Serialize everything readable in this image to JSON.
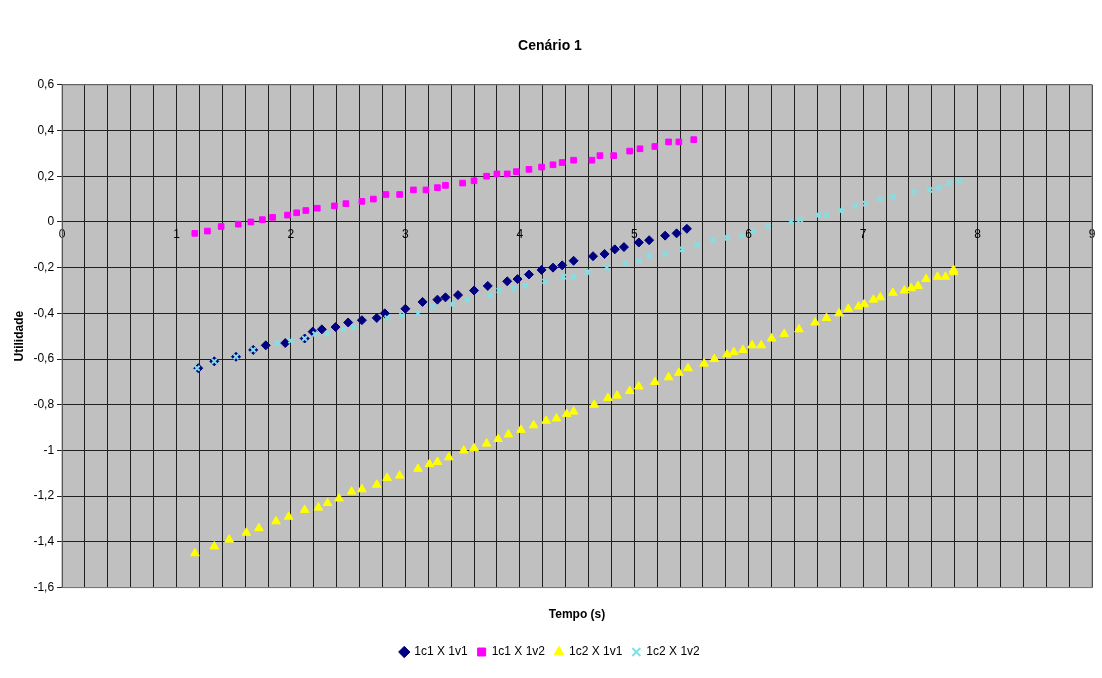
{
  "chart_data": {
    "type": "scatter",
    "title": "Cenário 1",
    "xlabel": "Tempo (s)",
    "ylabel": "Utilidade",
    "xlim": [
      0,
      9
    ],
    "ylim": [
      -1.6,
      0.6
    ],
    "xticks": [
      0,
      {
        "value": 0.2,
        "label": null
      },
      {
        "value": 0.4,
        "label": null
      },
      {
        "value": 0.6,
        "label": null
      },
      {
        "value": 0.8,
        "label": null
      },
      1,
      {
        "value": 1.2,
        "label": null
      },
      {
        "value": 1.4,
        "label": null
      },
      {
        "value": 1.6,
        "label": null
      },
      {
        "value": 1.8,
        "label": null
      },
      2,
      {
        "value": 2.2,
        "label": null
      },
      {
        "value": 2.4,
        "label": null
      },
      {
        "value": 2.6,
        "label": null
      },
      {
        "value": 2.8,
        "label": null
      },
      3,
      {
        "value": 3.2,
        "label": null
      },
      {
        "value": 3.4,
        "label": null
      },
      {
        "value": 3.6,
        "label": null
      },
      {
        "value": 3.8,
        "label": null
      },
      4,
      {
        "value": 4.2,
        "label": null
      },
      {
        "value": 4.4,
        "label": null
      },
      {
        "value": 4.6,
        "label": null
      },
      {
        "value": 4.8,
        "label": null
      },
      5,
      {
        "value": 5.2,
        "label": null
      },
      {
        "value": 5.4,
        "label": null
      },
      {
        "value": 5.6,
        "label": null
      },
      {
        "value": 5.8,
        "label": null
      },
      6,
      {
        "value": 6.2,
        "label": null
      },
      {
        "value": 6.4,
        "label": null
      },
      {
        "value": 6.6,
        "label": null
      },
      {
        "value": 6.8,
        "label": null
      },
      7,
      {
        "value": 7.2,
        "label": null
      },
      {
        "value": 7.4,
        "label": null
      },
      {
        "value": 7.6,
        "label": null
      },
      {
        "value": 7.8,
        "label": null
      },
      8,
      {
        "value": 8.2,
        "label": null
      },
      {
        "value": 8.4,
        "label": null
      },
      {
        "value": 8.6,
        "label": null
      },
      {
        "value": 8.8,
        "label": null
      },
      9
    ],
    "yticks": [
      {
        "value": -1.6,
        "label": "-1,6"
      },
      {
        "value": -1.4,
        "label": "-1,4"
      },
      {
        "value": -1.2,
        "label": "-1,2"
      },
      -1,
      {
        "value": -0.8,
        "label": "-0,8"
      },
      {
        "value": -0.6,
        "label": "-0,6"
      },
      {
        "value": -0.4,
        "label": "-0,4"
      },
      {
        "value": -0.2,
        "label": "-0,2"
      },
      0,
      {
        "value": 0.2,
        "label": "0,2"
      },
      {
        "value": 0.4,
        "label": "0,4"
      },
      {
        "value": 0.6,
        "label": "0,6"
      }
    ],
    "grid": true,
    "legend": "bottom",
    "series": [
      {
        "name": "1c1 X 1v1",
        "color": "#000080",
        "marker": "diamond",
        "x": [
          1.19,
          1.33,
          1.52,
          1.67,
          1.78,
          1.95,
          2.12,
          2.19,
          2.27,
          2.39,
          2.5,
          2.62,
          2.75,
          2.82,
          3.0,
          3.15,
          3.28,
          3.35,
          3.46,
          3.6,
          3.72,
          3.89,
          3.98,
          4.08,
          4.19,
          4.29,
          4.37,
          4.47,
          4.64,
          4.74,
          4.83,
          4.91,
          5.04,
          5.13,
          5.27,
          5.37,
          5.46
        ],
        "values": [
          -0.64,
          -0.61,
          -0.59,
          -0.56,
          -0.54,
          -0.53,
          -0.51,
          -0.48,
          -0.47,
          -0.46,
          -0.44,
          -0.43,
          -0.42,
          -0.4,
          -0.38,
          -0.35,
          -0.34,
          -0.33,
          -0.32,
          -0.3,
          -0.28,
          -0.26,
          -0.25,
          -0.23,
          -0.21,
          -0.2,
          -0.19,
          -0.17,
          -0.15,
          -0.14,
          -0.12,
          -0.11,
          -0.09,
          -0.08,
          -0.06,
          -0.05,
          -0.03
        ]
      },
      {
        "name": "1c1 X 1v2",
        "color": "#ff00ff",
        "marker": "square",
        "x": [
          1.16,
          1.27,
          1.39,
          1.54,
          1.65,
          1.75,
          1.84,
          1.97,
          2.05,
          2.13,
          2.23,
          2.38,
          2.48,
          2.62,
          2.72,
          2.83,
          2.95,
          3.07,
          3.18,
          3.28,
          3.35,
          3.5,
          3.6,
          3.71,
          3.8,
          3.89,
          3.97,
          4.08,
          4.19,
          4.29,
          4.37,
          4.47,
          4.63,
          4.7,
          4.82,
          4.96,
          5.05,
          5.18,
          5.3,
          5.39,
          5.52
        ],
        "values": [
          -0.05,
          -0.04,
          -0.02,
          -0.01,
          0.0,
          0.01,
          0.02,
          0.03,
          0.04,
          0.05,
          0.06,
          0.07,
          0.08,
          0.09,
          0.1,
          0.12,
          0.12,
          0.14,
          0.14,
          0.15,
          0.16,
          0.17,
          0.18,
          0.2,
          0.21,
          0.21,
          0.22,
          0.23,
          0.24,
          0.25,
          0.26,
          0.27,
          0.27,
          0.29,
          0.29,
          0.31,
          0.32,
          0.33,
          0.35,
          0.35,
          0.36
        ]
      },
      {
        "name": "1c2 X 1v1",
        "color": "#ffff00",
        "marker": "triangle",
        "x": [
          1.16,
          1.33,
          1.46,
          1.61,
          1.72,
          1.87,
          1.98,
          2.12,
          2.24,
          2.32,
          2.42,
          2.53,
          2.62,
          2.75,
          2.84,
          2.95,
          3.11,
          3.21,
          3.28,
          3.38,
          3.51,
          3.6,
          3.71,
          3.81,
          3.9,
          4.01,
          4.12,
          4.23,
          4.32,
          4.41,
          4.47,
          4.65,
          4.77,
          4.85,
          4.96,
          5.04,
          5.18,
          5.3,
          5.39,
          5.47,
          5.61,
          5.7,
          5.81,
          5.87,
          5.95,
          6.03,
          6.11,
          6.2,
          6.31,
          6.44,
          6.58,
          6.68,
          6.79,
          6.87,
          6.96,
          7.01,
          7.09,
          7.15,
          7.26,
          7.36,
          7.42,
          7.48,
          7.55,
          7.65,
          7.72,
          7.79,
          7.79
        ],
        "values": [
          -1.45,
          -1.42,
          -1.39,
          -1.36,
          -1.34,
          -1.31,
          -1.29,
          -1.26,
          -1.25,
          -1.23,
          -1.21,
          -1.18,
          -1.17,
          -1.15,
          -1.12,
          -1.11,
          -1.08,
          -1.06,
          -1.05,
          -1.03,
          -1.0,
          -0.99,
          -0.97,
          -0.95,
          -0.93,
          -0.91,
          -0.89,
          -0.87,
          -0.86,
          -0.84,
          -0.83,
          -0.8,
          -0.77,
          -0.76,
          -0.74,
          -0.72,
          -0.7,
          -0.68,
          -0.66,
          -0.64,
          -0.62,
          -0.6,
          -0.58,
          -0.57,
          -0.56,
          -0.54,
          -0.54,
          -0.51,
          -0.49,
          -0.47,
          -0.44,
          -0.42,
          -0.4,
          -0.38,
          -0.37,
          -0.36,
          -0.34,
          -0.33,
          -0.31,
          -0.3,
          -0.29,
          -0.28,
          -0.25,
          -0.24,
          -0.24,
          -0.22,
          -0.21
        ]
      },
      {
        "name": "1c2 X 1v2",
        "color": "#7fe0e6",
        "marker": "cross",
        "x": [
          1.18,
          1.33,
          1.52,
          1.67,
          1.88,
          2.0,
          2.12,
          2.21,
          2.32,
          2.46,
          2.55,
          2.84,
          2.97,
          3.11,
          3.24,
          3.41,
          3.54,
          3.74,
          3.82,
          3.95,
          4.05,
          4.22,
          4.38,
          4.47,
          4.59,
          4.76,
          4.92,
          5.04,
          5.13,
          5.27,
          5.42,
          5.55,
          5.69,
          5.81,
          5.94,
          6.04,
          6.17,
          6.37,
          6.45,
          6.61,
          6.68,
          6.81,
          6.93,
          7.02,
          7.15,
          7.26,
          7.45,
          7.58,
          7.66,
          7.75,
          7.84
        ],
        "values": [
          -0.64,
          -0.61,
          -0.59,
          -0.56,
          -0.53,
          -0.52,
          -0.51,
          -0.49,
          -0.49,
          -0.47,
          -0.46,
          -0.42,
          -0.41,
          -0.4,
          -0.37,
          -0.36,
          -0.34,
          -0.32,
          -0.3,
          -0.29,
          -0.28,
          -0.26,
          -0.24,
          -0.24,
          -0.22,
          -0.2,
          -0.18,
          -0.17,
          -0.15,
          -0.14,
          -0.12,
          -0.1,
          -0.08,
          -0.07,
          -0.06,
          -0.04,
          -0.02,
          0.0,
          0.01,
          0.03,
          0.03,
          0.05,
          0.07,
          0.08,
          0.1,
          0.11,
          0.13,
          0.14,
          0.15,
          0.17,
          0.18
        ]
      }
    ]
  }
}
